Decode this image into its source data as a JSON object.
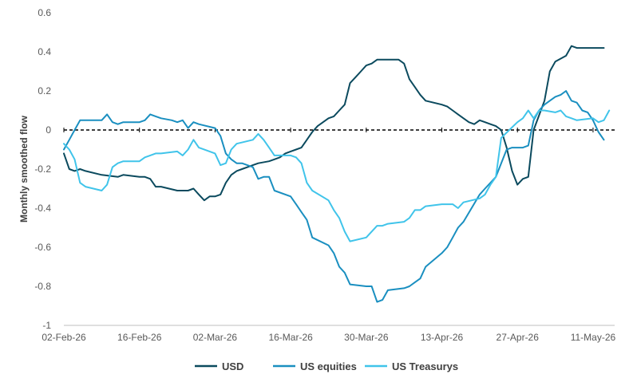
{
  "chart_data": {
    "type": "line",
    "title": "",
    "xlabel": "",
    "ylabel": "Monthly smoothed flow",
    "ylim": [
      -1,
      0.6
    ],
    "yticks": [
      -1,
      -0.8,
      -0.6,
      -0.4,
      -0.2,
      0,
      0.2,
      0.4,
      0.6
    ],
    "ytick_labels": [
      "-1",
      "-0.8",
      "-0.6",
      "-0.4",
      "-0.2",
      "0",
      "0.2",
      "0.4",
      "0.6"
    ],
    "x_start": "02-Feb-26",
    "x_end": "15-May-26",
    "xtick_labels": [
      "02-Feb-26",
      "16-Feb-26",
      "02-Mar-26",
      "16-Mar-26",
      "30-Mar-26",
      "13-Apr-26",
      "27-Apr-26",
      "11-May-26"
    ],
    "zero_line": "dashed",
    "grid": false,
    "legend_position": "bottom",
    "colors": {
      "USD": "#0b4a5e",
      "US equities": "#1a8fc0",
      "US Treasurys": "#40c4ea",
      "zero_line": "#000000",
      "axis": "#bfbfbf",
      "text": "#595959"
    },
    "series": [
      {
        "name": "USD",
        "x": [
          "02-Feb-26",
          "03-Feb-26",
          "04-Feb-26",
          "05-Feb-26",
          "06-Feb-26",
          "09-Feb-26",
          "12-Feb-26",
          "13-Feb-26",
          "16-Feb-26",
          "17-Feb-26",
          "18-Feb-26",
          "19-Feb-26",
          "20-Feb-26",
          "23-Feb-26",
          "24-Feb-26",
          "25-Feb-26",
          "26-Feb-26",
          "27-Feb-26",
          "28-Feb-26",
          "01-Mar-26",
          "02-Mar-26",
          "03-Mar-26",
          "04-Mar-26",
          "05-Mar-26",
          "06-Mar-26",
          "07-Mar-26",
          "08-Mar-26",
          "09-Mar-26",
          "10-Mar-26",
          "12-Mar-26",
          "13-Mar-26",
          "14-Mar-26",
          "15-Mar-26",
          "16-Mar-26",
          "17-Mar-26",
          "18-Mar-26",
          "19-Mar-26",
          "20-Mar-26",
          "21-Mar-26",
          "22-Mar-26",
          "23-Mar-26",
          "24-Mar-26",
          "25-Mar-26",
          "26-Mar-26",
          "27-Mar-26",
          "28-Mar-26",
          "29-Mar-26",
          "30-Mar-26",
          "31-Mar-26",
          "01-Apr-26",
          "02-Apr-26",
          "03-Apr-26",
          "04-Apr-26",
          "05-Apr-26",
          "06-Apr-26",
          "07-Apr-26",
          "08-Apr-26",
          "09-Apr-26",
          "10-Apr-26",
          "13-Apr-26",
          "14-Apr-26",
          "15-Apr-26",
          "16-Apr-26",
          "17-Apr-26",
          "18-Apr-26",
          "19-Apr-26",
          "20-Apr-26",
          "21-Apr-26",
          "22-Apr-26",
          "23-Apr-26",
          "24-Apr-26",
          "25-Apr-26",
          "26-Apr-26",
          "27-Apr-26",
          "28-Apr-26",
          "29-Apr-26",
          "30-Apr-26",
          "02-May-26",
          "03-May-26",
          "04-May-26",
          "06-May-26",
          "07-May-26",
          "08-May-26",
          "09-May-26",
          "10-May-26",
          "11-May-26",
          "12-May-26",
          "13-May-26"
        ],
        "y": [
          -0.12,
          -0.2,
          -0.21,
          -0.2,
          -0.21,
          -0.23,
          -0.24,
          -0.23,
          -0.24,
          -0.24,
          -0.25,
          -0.29,
          -0.29,
          -0.31,
          -0.31,
          -0.31,
          -0.3,
          -0.33,
          -0.36,
          -0.34,
          -0.34,
          -0.33,
          -0.27,
          -0.23,
          -0.21,
          -0.2,
          -0.19,
          -0.18,
          -0.17,
          -0.16,
          -0.15,
          -0.14,
          -0.12,
          -0.11,
          -0.1,
          -0.09,
          -0.05,
          -0.01,
          0.02,
          0.04,
          0.06,
          0.07,
          0.1,
          0.13,
          0.24,
          0.27,
          0.3,
          0.33,
          0.34,
          0.36,
          0.36,
          0.36,
          0.36,
          0.36,
          0.34,
          0.26,
          0.22,
          0.18,
          0.15,
          0.13,
          0.12,
          0.1,
          0.08,
          0.06,
          0.04,
          0.03,
          0.05,
          0.04,
          0.03,
          0.02,
          0.0,
          -0.09,
          -0.21,
          -0.28,
          -0.25,
          -0.24,
          0.0,
          0.15,
          0.3,
          0.35,
          0.38,
          0.43,
          0.42,
          0.42,
          0.42,
          0.42,
          0.42,
          0.42
        ]
      },
      {
        "name": "US equities",
        "x": [
          "02-Feb-26",
          "03-Feb-26",
          "04-Feb-26",
          "05-Feb-26",
          "06-Feb-26",
          "09-Feb-26",
          "10-Feb-26",
          "11-Feb-26",
          "12-Feb-26",
          "13-Feb-26",
          "14-Feb-26",
          "16-Feb-26",
          "17-Feb-26",
          "18-Feb-26",
          "19-Feb-26",
          "20-Feb-26",
          "22-Feb-26",
          "23-Feb-26",
          "24-Feb-26",
          "25-Feb-26",
          "26-Feb-26",
          "27-Feb-26",
          "02-Mar-26",
          "03-Mar-26",
          "04-Mar-26",
          "05-Mar-26",
          "06-Mar-26",
          "07-Mar-26",
          "09-Mar-26",
          "10-Mar-26",
          "11-Mar-26",
          "12-Mar-26",
          "13-Mar-26",
          "16-Mar-26",
          "17-Mar-26",
          "18-Mar-26",
          "19-Mar-26",
          "20-Mar-26",
          "23-Mar-26",
          "24-Mar-26",
          "25-Mar-26",
          "26-Mar-26",
          "27-Mar-26",
          "30-Mar-26",
          "31-Mar-26",
          "01-Apr-26",
          "02-Apr-26",
          "03-Apr-26",
          "06-Apr-26",
          "07-Apr-26",
          "08-Apr-26",
          "09-Apr-26",
          "10-Apr-26",
          "13-Apr-26",
          "14-Apr-26",
          "15-Apr-26",
          "16-Apr-26",
          "17-Apr-26",
          "20-Apr-26",
          "21-Apr-26",
          "22-Apr-26",
          "23-Apr-26",
          "24-Apr-26",
          "25-Apr-26",
          "26-Apr-26",
          "27-Apr-26",
          "28-Apr-26",
          "29-Apr-26",
          "30-Apr-26",
          "01-May-26",
          "02-May-26",
          "03-May-26",
          "04-May-26",
          "05-May-26",
          "06-May-26",
          "07-May-26",
          "08-May-26",
          "09-May-26",
          "10-May-26",
          "11-May-26",
          "12-May-26",
          "13-May-26"
        ],
        "y": [
          -0.1,
          -0.05,
          0.0,
          0.05,
          0.05,
          0.05,
          0.08,
          0.04,
          0.03,
          0.04,
          0.04,
          0.04,
          0.05,
          0.08,
          0.07,
          0.06,
          0.05,
          0.04,
          0.05,
          0.01,
          0.04,
          0.03,
          0.01,
          -0.03,
          -0.12,
          -0.15,
          -0.17,
          -0.17,
          -0.19,
          -0.25,
          -0.24,
          -0.24,
          -0.31,
          -0.34,
          -0.38,
          -0.42,
          -0.46,
          -0.55,
          -0.59,
          -0.63,
          -0.7,
          -0.73,
          -0.79,
          -0.8,
          -0.8,
          -0.88,
          -0.87,
          -0.82,
          -0.81,
          -0.8,
          -0.78,
          -0.76,
          -0.7,
          -0.63,
          -0.6,
          -0.55,
          -0.5,
          -0.47,
          -0.33,
          -0.3,
          -0.27,
          -0.24,
          -0.17,
          -0.1,
          -0.09,
          -0.09,
          -0.09,
          -0.08,
          0.05,
          0.1,
          0.13,
          0.15,
          0.17,
          0.18,
          0.2,
          0.15,
          0.14,
          0.1,
          0.09,
          0.05,
          -0.01,
          -0.05
        ]
      },
      {
        "name": "US Treasurys",
        "x": [
          "02-Feb-26",
          "03-Feb-26",
          "04-Feb-26",
          "05-Feb-26",
          "06-Feb-26",
          "09-Feb-26",
          "10-Feb-26",
          "11-Feb-26",
          "12-Feb-26",
          "13-Feb-26",
          "16-Feb-26",
          "17-Feb-26",
          "18-Feb-26",
          "19-Feb-26",
          "20-Feb-26",
          "23-Feb-26",
          "24-Feb-26",
          "25-Feb-26",
          "26-Feb-26",
          "27-Feb-26",
          "02-Mar-26",
          "03-Mar-26",
          "04-Mar-26",
          "05-Mar-26",
          "06-Mar-26",
          "09-Mar-26",
          "10-Mar-26",
          "11-Mar-26",
          "12-Mar-26",
          "13-Mar-26",
          "16-Mar-26",
          "17-Mar-26",
          "18-Mar-26",
          "19-Mar-26",
          "20-Mar-26",
          "23-Mar-26",
          "24-Mar-26",
          "25-Mar-26",
          "26-Mar-26",
          "27-Mar-26",
          "30-Mar-26",
          "31-Mar-26",
          "01-Apr-26",
          "02-Apr-26",
          "03-Apr-26",
          "06-Apr-26",
          "07-Apr-26",
          "08-Apr-26",
          "09-Apr-26",
          "10-Apr-26",
          "13-Apr-26",
          "14-Apr-26",
          "15-Apr-26",
          "16-Apr-26",
          "17-Apr-26",
          "20-Apr-26",
          "21-Apr-26",
          "22-Apr-26",
          "23-Apr-26",
          "24-Apr-26",
          "27-Apr-26",
          "28-Apr-26",
          "29-Apr-26",
          "30-Apr-26",
          "01-May-26",
          "02-May-26",
          "04-May-26",
          "05-May-26",
          "06-May-26",
          "07-May-26",
          "08-May-26",
          "11-May-26",
          "12-May-26",
          "13-May-26",
          "14-May-26"
        ],
        "y": [
          -0.07,
          -0.1,
          -0.15,
          -0.27,
          -0.29,
          -0.31,
          -0.28,
          -0.19,
          -0.17,
          -0.16,
          -0.16,
          -0.14,
          -0.13,
          -0.12,
          -0.12,
          -0.11,
          -0.13,
          -0.1,
          -0.05,
          -0.09,
          -0.12,
          -0.18,
          -0.17,
          -0.1,
          -0.07,
          -0.05,
          -0.02,
          -0.05,
          -0.09,
          -0.13,
          -0.13,
          -0.14,
          -0.17,
          -0.27,
          -0.31,
          -0.36,
          -0.41,
          -0.45,
          -0.52,
          -0.57,
          -0.55,
          -0.52,
          -0.49,
          -0.49,
          -0.48,
          -0.47,
          -0.45,
          -0.41,
          -0.41,
          -0.39,
          -0.38,
          -0.38,
          -0.38,
          -0.4,
          -0.37,
          -0.35,
          -0.33,
          -0.28,
          -0.24,
          -0.04,
          0.04,
          0.06,
          0.1,
          0.06,
          0.1,
          0.1,
          0.09,
          0.1,
          0.07,
          0.06,
          0.05,
          0.06,
          0.04,
          0.05,
          0.1
        ]
      }
    ]
  }
}
